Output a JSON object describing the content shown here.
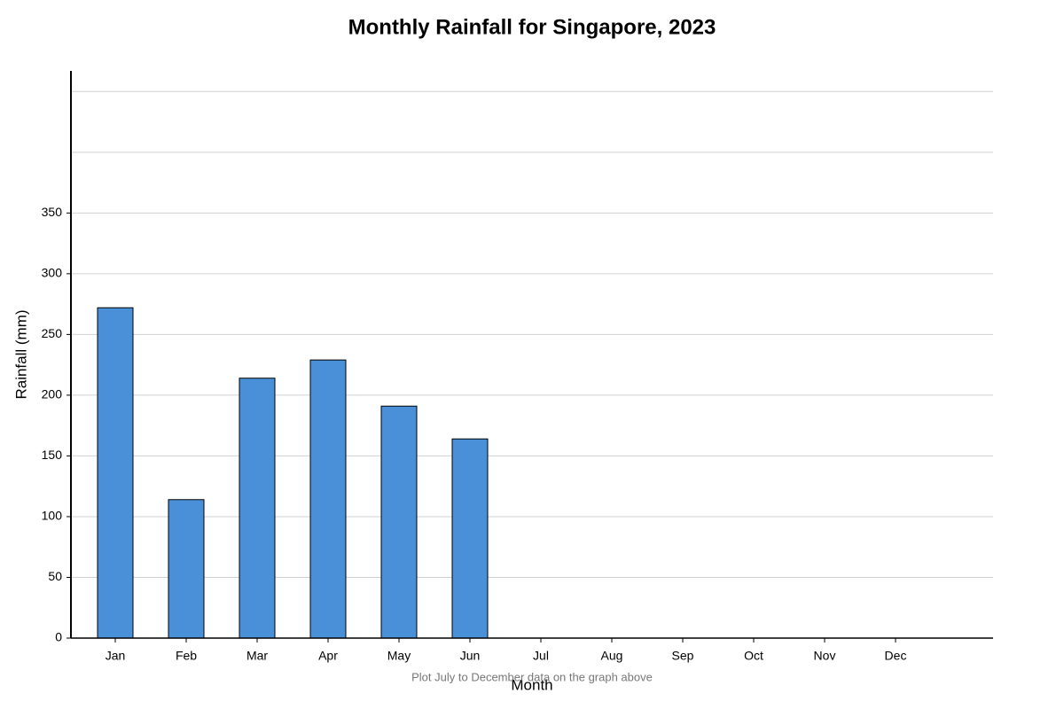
{
  "chart_data": {
    "type": "bar",
    "title": "Monthly Rainfall for Singapore, 2023",
    "x_label": "Month",
    "y_label": "Rainfall (mm)",
    "annotation": "Plot July to December data on the graph above",
    "categories": [
      "Jan",
      "Feb",
      "Mar",
      "Apr",
      "May",
      "Jun",
      "Jul",
      "Aug",
      "Sep",
      "Oct",
      "Nov",
      "Dec"
    ],
    "values": [
      272,
      114,
      214,
      229,
      191,
      164,
      null,
      null,
      null,
      null,
      null,
      null
    ],
    "color": "#4a90d9",
    "ylim": [
      0,
      467
    ],
    "yticks": [
      0,
      50,
      100,
      150,
      200,
      250,
      300,
      350
    ],
    "ygrid": [
      50,
      100,
      150,
      200,
      250,
      300,
      350,
      400,
      450
    ],
    "grid": true
  }
}
